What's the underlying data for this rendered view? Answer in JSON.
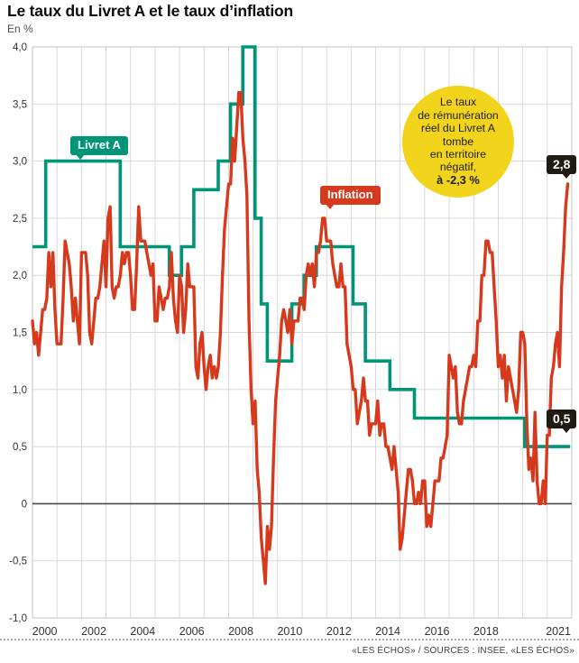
{
  "title": "Le taux du Livret A et le taux d’inflation",
  "unit_label": "En %",
  "badges": {
    "livret_label": "Livret A",
    "inflation_label": "Inflation",
    "inflation_last": "2,8",
    "livret_last": "0,5"
  },
  "annotation": {
    "lines": [
      "Le taux",
      "de rémunération",
      "réel du Livret A",
      "tombe",
      "en territoire",
      "négatif,"
    ],
    "bold_line": "à -2,3 %"
  },
  "footer": {
    "source": "«LES ÉCHOS» / SOURCES : INSEE, «LES ÉCHOS»"
  },
  "colors": {
    "livret": "#009577",
    "inflation": "#d7391d",
    "annotation_bg": "#f2d41d",
    "badge_dark": "#211b14",
    "grid": "#d8d8d8",
    "plot_border": "#c5c5c5",
    "zero_line": "#4a4a4a"
  },
  "chart_data": {
    "type": "line",
    "title": "Le taux du Livret A et le taux d’inflation",
    "ylabel": "En %",
    "x_range": [
      2000,
      2022
    ],
    "y_range": [
      -1,
      4
    ],
    "grid": true,
    "legend_position": "inline-badges",
    "y_ticks": [
      {
        "v": 4.0,
        "label": "4,0"
      },
      {
        "v": 3.5,
        "label": "3,5"
      },
      {
        "v": 3.0,
        "label": "3,0"
      },
      {
        "v": 2.5,
        "label": "2,5"
      },
      {
        "v": 2.0,
        "label": "2,0"
      },
      {
        "v": 1.5,
        "label": "1,5"
      },
      {
        "v": 1.0,
        "label": "1,0"
      },
      {
        "v": 0.5,
        "label": "0,5"
      },
      {
        "v": 0.0,
        "label": "0"
      },
      {
        "v": -0.5,
        "label": "-0,5"
      },
      {
        "v": -1.0,
        "label": "-1,0"
      }
    ],
    "x_ticks": [
      {
        "t": 2000.5,
        "label": "2000"
      },
      {
        "t": 2002.5,
        "label": "2002"
      },
      {
        "t": 2004.5,
        "label": "2004"
      },
      {
        "t": 2006.5,
        "label": "2006"
      },
      {
        "t": 2008.5,
        "label": "2008"
      },
      {
        "t": 2010.5,
        "label": "2010"
      },
      {
        "t": 2012.5,
        "label": "2012"
      },
      {
        "t": 2014.5,
        "label": "2014"
      },
      {
        "t": 2016.5,
        "label": "2016"
      },
      {
        "t": 2018.5,
        "label": "2018"
      },
      {
        "t": 2021.45,
        "label": "2021"
      }
    ],
    "series": [
      {
        "name": "Livret A",
        "type": "step",
        "color": "#009577",
        "end_x": 2021.93,
        "points": [
          [
            2000.0,
            2.25
          ],
          [
            2000.54,
            3.0
          ],
          [
            2003.58,
            2.25
          ],
          [
            2005.58,
            2.0
          ],
          [
            2006.08,
            2.25
          ],
          [
            2006.58,
            2.75
          ],
          [
            2007.58,
            3.0
          ],
          [
            2008.08,
            3.5
          ],
          [
            2008.58,
            4.0
          ],
          [
            2009.08,
            2.5
          ],
          [
            2009.33,
            1.75
          ],
          [
            2009.58,
            1.25
          ],
          [
            2010.58,
            1.75
          ],
          [
            2011.08,
            2.0
          ],
          [
            2011.58,
            2.25
          ],
          [
            2013.08,
            1.75
          ],
          [
            2013.58,
            1.25
          ],
          [
            2014.58,
            1.0
          ],
          [
            2015.58,
            0.75
          ],
          [
            2020.08,
            0.5
          ]
        ],
        "last_value_label": "0,5"
      },
      {
        "name": "Inflation",
        "type": "line",
        "color": "#d7391d",
        "x_start": 2000.0,
        "x_step": 0.0833333,
        "values": [
          1.6,
          1.4,
          1.5,
          1.3,
          1.5,
          1.7,
          1.7,
          1.8,
          2.2,
          1.9,
          2.2,
          1.7,
          1.4,
          1.4,
          1.4,
          1.8,
          2.3,
          2.2,
          2.1,
          1.9,
          1.6,
          1.8,
          1.6,
          1.4,
          2.2,
          2.2,
          2.2,
          2.0,
          1.5,
          1.4,
          1.6,
          1.8,
          1.8,
          1.9,
          2.1,
          2.3,
          1.9,
          2.5,
          2.6,
          1.9,
          1.8,
          1.9,
          1.9,
          2.0,
          2.2,
          2.1,
          2.2,
          2.2,
          2.0,
          1.7,
          1.7,
          2.1,
          2.6,
          2.3,
          2.3,
          2.3,
          2.2,
          2.1,
          2.0,
          2.1,
          1.6,
          1.6,
          1.9,
          1.8,
          1.7,
          1.8,
          1.8,
          1.9,
          2.2,
          1.8,
          1.6,
          1.5,
          2.0,
          1.9,
          1.5,
          1.7,
          2.1,
          1.9,
          1.9,
          1.9,
          1.2,
          1.1,
          1.4,
          1.5,
          1.2,
          1.0,
          1.2,
          1.3,
          1.1,
          1.2,
          1.1,
          1.2,
          1.5,
          2.0,
          2.4,
          2.6,
          2.8,
          2.8,
          3.2,
          3.0,
          3.3,
          3.6,
          3.6,
          3.2,
          3.0,
          2.7,
          1.6,
          1.0,
          0.7,
          0.9,
          0.3,
          0.1,
          -0.3,
          -0.5,
          -0.7,
          -0.2,
          -0.4,
          -0.2,
          0.4,
          0.9,
          1.1,
          1.3,
          1.6,
          1.7,
          1.6,
          1.5,
          1.7,
          1.4,
          1.6,
          1.6,
          1.6,
          1.8,
          1.8,
          1.7,
          2.0,
          2.1,
          2.0,
          2.1,
          1.9,
          2.2,
          2.2,
          2.3,
          2.5,
          2.5,
          2.3,
          2.3,
          2.3,
          2.1,
          2.0,
          1.9,
          1.9,
          2.1,
          1.9,
          1.9,
          1.4,
          1.3,
          1.2,
          1.0,
          1.0,
          0.7,
          0.8,
          0.9,
          1.1,
          0.9,
          0.9,
          0.6,
          0.7,
          0.7,
          0.7,
          0.9,
          0.6,
          0.7,
          0.7,
          0.5,
          0.5,
          0.4,
          0.3,
          0.5,
          0.3,
          0.1,
          -0.4,
          -0.3,
          -0.1,
          0.1,
          0.3,
          0.3,
          0.2,
          0.0,
          0.0,
          0.1,
          0.0,
          0.2,
          0.2,
          -0.2,
          -0.1,
          -0.2,
          0.0,
          0.2,
          0.2,
          0.2,
          0.4,
          0.4,
          0.5,
          0.6,
          1.3,
          1.2,
          1.1,
          1.2,
          0.8,
          0.7,
          0.7,
          0.9,
          1.0,
          1.1,
          1.2,
          1.2,
          1.3,
          1.2,
          1.6,
          1.6,
          2.0,
          2.0,
          2.3,
          2.3,
          2.2,
          2.2,
          1.9,
          1.6,
          1.2,
          1.3,
          1.1,
          1.3,
          0.9,
          1.2,
          1.1,
          1.0,
          0.9,
          0.8,
          1.0,
          1.5,
          1.5,
          1.4,
          0.7,
          0.3,
          0.4,
          0.2,
          0.8,
          0.2,
          0.0,
          0.0,
          0.2,
          0.0,
          0.6,
          0.6,
          1.1,
          1.2,
          1.4,
          1.5,
          1.2,
          1.9,
          2.2,
          2.6,
          2.8
        ],
        "last_value_label": "2,8"
      }
    ]
  }
}
